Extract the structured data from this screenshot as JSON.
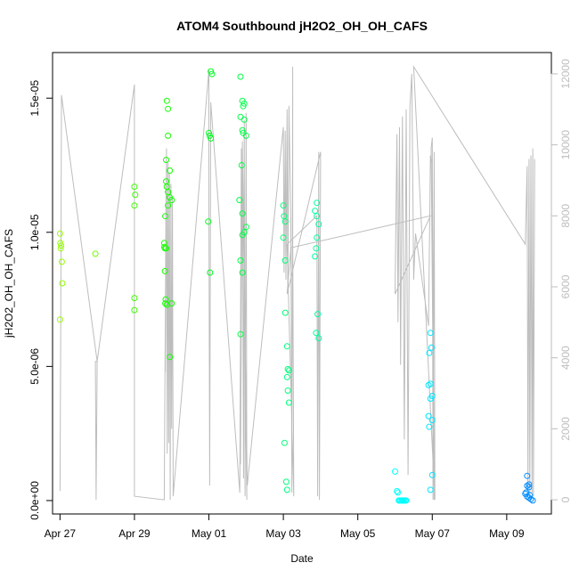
{
  "chart_data": {
    "type": "scatter",
    "title": "ATOM4 Southbound jH2O2_OH_OH_CAFS",
    "xlabel": "Date",
    "ylabel": "jH2O2_OH_OH_CAFS",
    "right_axis_label": "",
    "x_tick_labels": [
      "Apr 27",
      "Apr 29",
      "May 01",
      "May 03",
      "May 05",
      "May 07",
      "May 09"
    ],
    "x_tick_days": [
      27,
      29,
      31,
      33,
      35,
      37,
      39
    ],
    "y_tick_labels": [
      "0.0e+00",
      "5.0e-06",
      "1.0e-05",
      "1.5e-05"
    ],
    "y_tick_values": [
      0,
      5e-06,
      1e-05,
      1.5e-05
    ],
    "y2_tick_labels": [
      "0",
      "2000",
      "4000",
      "6000",
      "8000",
      "10000",
      "12000"
    ],
    "y2_tick_values": [
      0,
      2000,
      4000,
      6000,
      8000,
      10000,
      12000
    ],
    "xlim": [
      26.8,
      40.2
    ],
    "ylim": [
      -5e-07,
      1.67e-05
    ],
    "y2lim": [
      -400,
      12600
    ],
    "grid": false,
    "colors": {
      "points": "color gradient green to blue by date",
      "altitude_line": "#bdbdbd"
    },
    "points": [
      [
        27.0,
        9.95e-06
      ],
      [
        27.01,
        9.6e-06
      ],
      [
        27.02,
        9.4e-06
      ],
      [
        27.03,
        9.5e-06
      ],
      [
        27.05,
        8.9e-06
      ],
      [
        27.06,
        8.1e-06
      ],
      [
        27.0,
        6.75e-06
      ],
      [
        27.95,
        9.2e-06
      ],
      [
        29.0,
        1.17e-05
      ],
      [
        29.02,
        1.14e-05
      ],
      [
        29.0,
        1.1e-05
      ],
      [
        29.0,
        7.55e-06
      ],
      [
        29.0,
        7.1e-06
      ],
      [
        29.8,
        9.6e-06
      ],
      [
        29.82,
        9.4e-06
      ],
      [
        29.8,
        9.45e-06
      ],
      [
        29.85,
        9.4e-06
      ],
      [
        29.82,
        8.55e-06
      ],
      [
        29.84,
        7.5e-06
      ],
      [
        29.83,
        7.35e-06
      ],
      [
        29.87,
        7.3e-06
      ],
      [
        30.0,
        7.35e-06
      ],
      [
        29.87,
        1.49e-05
      ],
      [
        29.9,
        1.46e-05
      ],
      [
        29.9,
        1.36e-05
      ],
      [
        29.85,
        1.27e-05
      ],
      [
        29.95,
        1.23e-05
      ],
      [
        29.85,
        1.19e-05
      ],
      [
        29.87,
        1.17e-05
      ],
      [
        29.9,
        1.15e-05
      ],
      [
        29.95,
        1.13e-05
      ],
      [
        30.0,
        1.12e-05
      ],
      [
        29.9,
        1.1e-05
      ],
      [
        29.83,
        1.06e-05
      ],
      [
        29.95,
        5.35e-06
      ],
      [
        31.05,
        1.6e-05
      ],
      [
        31.08,
        1.59e-05
      ],
      [
        31.0,
        1.37e-05
      ],
      [
        31.02,
        1.36e-05
      ],
      [
        31.05,
        1.35e-05
      ],
      [
        30.98,
        1.04e-05
      ],
      [
        31.03,
        8.5e-06
      ],
      [
        31.85,
        1.58e-05
      ],
      [
        31.9,
        1.49e-05
      ],
      [
        31.95,
        1.48e-05
      ],
      [
        31.92,
        1.47e-05
      ],
      [
        31.85,
        1.43e-05
      ],
      [
        31.95,
        1.42e-05
      ],
      [
        31.9,
        1.38e-05
      ],
      [
        31.92,
        1.37e-05
      ],
      [
        32.0,
        1.36e-05
      ],
      [
        31.88,
        1.25e-05
      ],
      [
        31.82,
        1.12e-05
      ],
      [
        31.9,
        1.07e-05
      ],
      [
        32.0,
        1.02e-05
      ],
      [
        31.95,
        1e-05
      ],
      [
        31.9,
        9.9e-06
      ],
      [
        31.85,
        8.95e-06
      ],
      [
        31.9,
        8.5e-06
      ],
      [
        31.85,
        6.2e-06
      ],
      [
        33.0,
        1.1e-05
      ],
      [
        33.02,
        1.06e-05
      ],
      [
        33.05,
        1.04e-05
      ],
      [
        33.0,
        9.8e-06
      ],
      [
        33.05,
        8.95e-06
      ],
      [
        33.05,
        7e-06
      ],
      [
        33.1,
        5.75e-06
      ],
      [
        33.12,
        4.9e-06
      ],
      [
        33.15,
        4.85e-06
      ],
      [
        33.1,
        4.6e-06
      ],
      [
        33.12,
        4.1e-06
      ],
      [
        33.15,
        3.65e-06
      ],
      [
        33.03,
        2.15e-06
      ],
      [
        33.08,
        7e-07
      ],
      [
        33.1,
        4e-07
      ],
      [
        33.9,
        1.11e-05
      ],
      [
        33.85,
        1.08e-05
      ],
      [
        33.9,
        1.06e-05
      ],
      [
        33.95,
        1.03e-05
      ],
      [
        33.9,
        9.8e-06
      ],
      [
        33.88,
        9.4e-06
      ],
      [
        33.85,
        9.1e-06
      ],
      [
        33.92,
        6.95e-06
      ],
      [
        33.88,
        6.25e-06
      ],
      [
        33.95,
        6.05e-06
      ],
      [
        36.0,
        1.08e-06
      ],
      [
        36.05,
        3.5e-07
      ],
      [
        36.08,
        3e-07
      ],
      [
        36.1,
        0.0
      ],
      [
        36.12,
        0.0
      ],
      [
        36.15,
        0.0
      ],
      [
        36.18,
        0.0
      ],
      [
        36.2,
        0.0
      ],
      [
        36.22,
        0.0
      ],
      [
        36.25,
        0.0
      ],
      [
        36.28,
        0.0
      ],
      [
        36.3,
        0.0
      ],
      [
        36.95,
        6.25e-06
      ],
      [
        36.98,
        5.7e-06
      ],
      [
        36.92,
        5.5e-06
      ],
      [
        36.95,
        4.35e-06
      ],
      [
        36.9,
        4.3e-06
      ],
      [
        37.0,
        3.9e-06
      ],
      [
        36.95,
        3.8e-06
      ],
      [
        36.9,
        3.15e-06
      ],
      [
        37.0,
        3e-06
      ],
      [
        36.92,
        2.75e-06
      ],
      [
        37.0,
        9.5e-07
      ],
      [
        36.95,
        4e-07
      ],
      [
        39.55,
        9.2e-07
      ],
      [
        39.6,
        6e-07
      ],
      [
        39.55,
        5.5e-07
      ],
      [
        39.6,
        5e-07
      ],
      [
        39.52,
        3e-07
      ],
      [
        39.5,
        2.5e-07
      ],
      [
        39.55,
        1.5e-07
      ],
      [
        39.6,
        1e-07
      ],
      [
        39.65,
        5e-08
      ],
      [
        39.7,
        0.0
      ],
      [
        39.62,
        2e-07
      ]
    ],
    "altitude_path": [
      [
        27.0,
        250
      ],
      [
        27.02,
        5000
      ],
      [
        27.04,
        11400
      ],
      [
        28.0,
        3900
      ],
      [
        27.95,
        3900
      ],
      [
        27.97,
        0
      ],
      [
        28.0,
        3900
      ],
      [
        29.0,
        11700
      ],
      [
        29.0,
        100
      ],
      [
        29.8,
        0
      ],
      [
        29.85,
        9000
      ],
      [
        29.83,
        3600
      ],
      [
        29.86,
        9900
      ],
      [
        29.88,
        1300
      ],
      [
        29.9,
        9500
      ],
      [
        29.92,
        1600
      ],
      [
        29.94,
        9200
      ],
      [
        29.96,
        0
      ],
      [
        29.98,
        8900
      ],
      [
        30.0,
        2000
      ],
      [
        30.02,
        8500
      ],
      [
        30.04,
        100
      ],
      [
        31.0,
        12100
      ],
      [
        31.0,
        8600
      ],
      [
        31.02,
        400
      ],
      [
        31.05,
        11200
      ],
      [
        31.83,
        200
      ],
      [
        31.87,
        9900
      ],
      [
        31.85,
        1000
      ],
      [
        31.9,
        10100
      ],
      [
        31.93,
        600
      ],
      [
        31.95,
        10700
      ],
      [
        31.97,
        100
      ],
      [
        32.0,
        10900
      ],
      [
        32.02,
        0
      ],
      [
        31.9,
        10000
      ],
      [
        32.03,
        400
      ],
      [
        33.0,
        10500
      ],
      [
        33.02,
        6400
      ],
      [
        33.05,
        10400
      ],
      [
        33.07,
        6200
      ],
      [
        33.1,
        11000
      ],
      [
        33.12,
        5900
      ],
      [
        33.15,
        11100
      ],
      [
        33.2,
        7800
      ],
      [
        33.23,
        200
      ],
      [
        33.25,
        12200
      ],
      [
        33.25,
        7500
      ],
      [
        33.28,
        100
      ],
      [
        33.1,
        7200
      ],
      [
        33.9,
        8000
      ],
      [
        33.92,
        100
      ],
      [
        33.95,
        9800
      ],
      [
        33.97,
        0
      ],
      [
        34.0,
        9800
      ],
      [
        33.1,
        5800
      ],
      [
        33.2,
        7100
      ],
      [
        36.95,
        8000
      ],
      [
        36.0,
        5800
      ],
      [
        36.05,
        10300
      ],
      [
        36.08,
        5000
      ],
      [
        36.12,
        10500
      ],
      [
        36.15,
        3800
      ],
      [
        36.2,
        10800
      ],
      [
        36.25,
        1700
      ],
      [
        36.3,
        11000
      ],
      [
        36.35,
        700
      ],
      [
        36.4,
        11100
      ],
      [
        36.45,
        12000
      ],
      [
        36.5,
        6200
      ],
      [
        36.55,
        7500
      ],
      [
        36.9,
        4900
      ],
      [
        36.95,
        9700
      ],
      [
        37.0,
        9500
      ],
      [
        37.05,
        0
      ],
      [
        36.97,
        9900
      ],
      [
        37.0,
        10200
      ],
      [
        37.02,
        0
      ],
      [
        37.05,
        9800
      ],
      [
        37.07,
        0
      ],
      [
        36.5,
        12200
      ],
      [
        39.5,
        7200
      ],
      [
        39.55,
        9400
      ],
      [
        39.57,
        100
      ],
      [
        39.6,
        9600
      ],
      [
        39.62,
        0
      ],
      [
        39.65,
        9700
      ],
      [
        39.68,
        200
      ],
      [
        39.7,
        9900
      ],
      [
        39.72,
        100
      ],
      [
        39.75,
        9600
      ]
    ]
  }
}
